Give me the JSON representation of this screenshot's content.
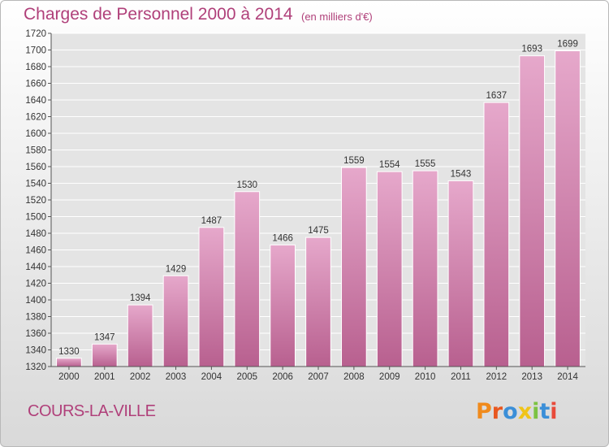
{
  "header": {
    "title": "Charges de Personnel 2000 à 2014",
    "subtitle": "(en milliers d'€)"
  },
  "footer": {
    "commune": "COURS-LA-VILLE",
    "logo_text": "Proxiti",
    "logo_colors": [
      "#f08a1c",
      "#e8571f",
      "#3b8fd8",
      "#f0c419",
      "#7cc242",
      "#3b8fd8",
      "#e84a3a"
    ]
  },
  "colors": {
    "title": "#b0407a",
    "bar_top": "#e6a8cb",
    "bar_bottom": "#b8608f",
    "bar_edge": "#ffffff",
    "grid": "#ffffff"
  },
  "chart_data": {
    "type": "bar",
    "title": "Charges de Personnel 2000 à 2014",
    "subtitle": "(en milliers d'€)",
    "categories": [
      "2000",
      "2001",
      "2002",
      "2003",
      "2004",
      "2005",
      "2006",
      "2007",
      "2008",
      "2009",
      "2010",
      "2011",
      "2012",
      "2013",
      "2014"
    ],
    "values": [
      1330,
      1347,
      1394,
      1429,
      1487,
      1530,
      1466,
      1475,
      1559,
      1554,
      1555,
      1543,
      1637,
      1693,
      1699
    ],
    "ylim": [
      1320,
      1720
    ],
    "ytick_step": 20,
    "grid": true,
    "legend": "none"
  }
}
